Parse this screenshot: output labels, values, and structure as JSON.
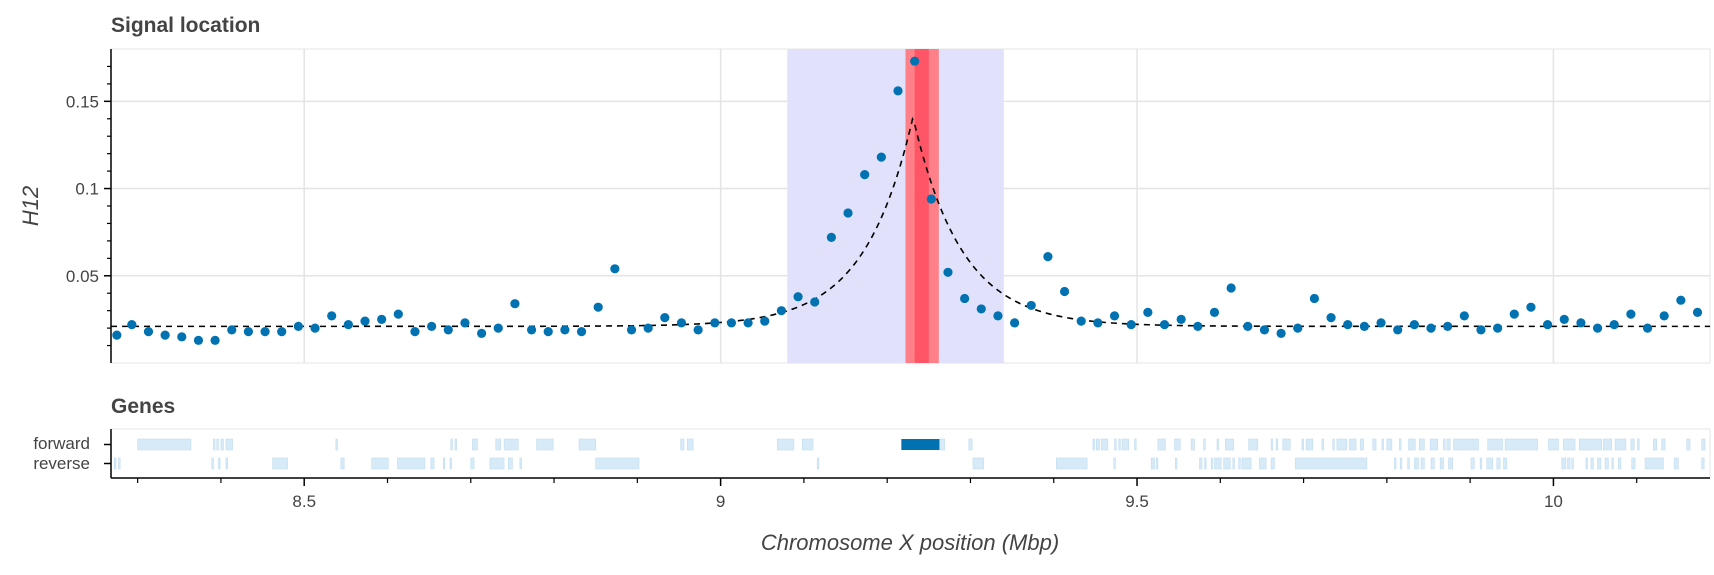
{
  "chart_data": {
    "type": "scatter",
    "signal_panel": {
      "title": "Signal location",
      "ylabel": "H12",
      "xlim": [
        8.268,
        10.188
      ],
      "ylim": [
        0.0,
        0.18
      ],
      "y_ticks": [
        {
          "value": 0.05,
          "label": "0.05"
        },
        {
          "value": 0.1,
          "label": "0.1"
        },
        {
          "value": 0.15,
          "label": "0.15"
        }
      ],
      "grid": true,
      "points_color": "#0072b2",
      "points": [
        [
          8.275,
          0.016
        ],
        [
          8.293,
          0.022
        ],
        [
          8.313,
          0.018
        ],
        [
          8.333,
          0.016
        ],
        [
          8.353,
          0.015
        ],
        [
          8.373,
          0.013
        ],
        [
          8.393,
          0.013
        ],
        [
          8.413,
          0.019
        ],
        [
          8.433,
          0.018
        ],
        [
          8.453,
          0.018
        ],
        [
          8.473,
          0.018
        ],
        [
          8.493,
          0.021
        ],
        [
          8.513,
          0.02
        ],
        [
          8.533,
          0.027
        ],
        [
          8.553,
          0.022
        ],
        [
          8.573,
          0.024
        ],
        [
          8.593,
          0.025
        ],
        [
          8.613,
          0.028
        ],
        [
          8.633,
          0.018
        ],
        [
          8.653,
          0.021
        ],
        [
          8.673,
          0.019
        ],
        [
          8.693,
          0.023
        ],
        [
          8.713,
          0.017
        ],
        [
          8.733,
          0.02
        ],
        [
          8.753,
          0.034
        ],
        [
          8.773,
          0.019
        ],
        [
          8.793,
          0.018
        ],
        [
          8.813,
          0.019
        ],
        [
          8.833,
          0.018
        ],
        [
          8.853,
          0.032
        ],
        [
          8.873,
          0.054
        ],
        [
          8.893,
          0.019
        ],
        [
          8.913,
          0.02
        ],
        [
          8.933,
          0.026
        ],
        [
          8.953,
          0.023
        ],
        [
          8.973,
          0.019
        ],
        [
          8.993,
          0.023
        ],
        [
          9.013,
          0.023
        ],
        [
          9.033,
          0.023
        ],
        [
          9.053,
          0.024
        ],
        [
          9.073,
          0.03
        ],
        [
          9.093,
          0.038
        ],
        [
          9.113,
          0.035
        ],
        [
          9.133,
          0.072
        ],
        [
          9.153,
          0.086
        ],
        [
          9.173,
          0.108
        ],
        [
          9.193,
          0.118
        ],
        [
          9.213,
          0.156
        ],
        [
          9.233,
          0.173
        ],
        [
          9.253,
          0.094
        ],
        [
          9.273,
          0.052
        ],
        [
          9.293,
          0.037
        ],
        [
          9.313,
          0.031
        ],
        [
          9.333,
          0.027
        ],
        [
          9.353,
          0.023
        ],
        [
          9.373,
          0.033
        ],
        [
          9.393,
          0.061
        ],
        [
          9.413,
          0.041
        ],
        [
          9.433,
          0.024
        ],
        [
          9.453,
          0.023
        ],
        [
          9.473,
          0.027
        ],
        [
          9.493,
          0.022
        ],
        [
          9.513,
          0.029
        ],
        [
          9.533,
          0.022
        ],
        [
          9.553,
          0.025
        ],
        [
          9.573,
          0.021
        ],
        [
          9.593,
          0.029
        ],
        [
          9.613,
          0.043
        ],
        [
          9.633,
          0.021
        ],
        [
          9.653,
          0.019
        ],
        [
          9.673,
          0.017
        ],
        [
          9.693,
          0.02
        ],
        [
          9.713,
          0.037
        ],
        [
          9.733,
          0.026
        ],
        [
          9.753,
          0.022
        ],
        [
          9.773,
          0.021
        ],
        [
          9.793,
          0.023
        ],
        [
          9.813,
          0.019
        ],
        [
          9.833,
          0.022
        ],
        [
          9.853,
          0.02
        ],
        [
          9.873,
          0.021
        ],
        [
          9.893,
          0.027
        ],
        [
          9.913,
          0.019
        ],
        [
          9.933,
          0.02
        ],
        [
          9.953,
          0.028
        ],
        [
          9.973,
          0.032
        ],
        [
          9.993,
          0.022
        ],
        [
          10.013,
          0.025
        ],
        [
          10.033,
          0.023
        ],
        [
          10.053,
          0.02
        ],
        [
          10.073,
          0.022
        ],
        [
          10.093,
          0.028
        ],
        [
          10.113,
          0.02
        ],
        [
          10.133,
          0.027
        ],
        [
          10.153,
          0.036
        ],
        [
          10.173,
          0.029
        ]
      ],
      "fit_peak_x": 9.231,
      "fit_peak_y": 0.141,
      "fit_baseline_y": 0.021,
      "fit_line_color": "#000000",
      "span_region": [
        9.08,
        9.34
      ],
      "span_color": "#e1e1fc",
      "focus_region": [
        9.222,
        9.262
      ],
      "focus_color": "#ff8088",
      "focus_center": [
        9.233,
        9.25
      ],
      "focus_center_color": "#ff5566"
    },
    "genes_panel": {
      "title": "Genes",
      "strands": [
        "forward",
        "reverse"
      ],
      "gene_color": "#d6eaf8",
      "highlight_color": "#0072b2",
      "forward_genes": [
        [
          8.3,
          8.364
        ],
        [
          8.391,
          8.393
        ],
        [
          8.395,
          8.397
        ],
        [
          8.4,
          8.403
        ],
        [
          8.406,
          8.414
        ],
        [
          8.538,
          8.54
        ],
        [
          8.676,
          8.678
        ],
        [
          8.681,
          8.683
        ],
        [
          8.702,
          8.708
        ],
        [
          8.73,
          8.736
        ],
        [
          8.74,
          8.757
        ],
        [
          8.779,
          8.799
        ],
        [
          8.83,
          8.85
        ],
        [
          8.952,
          8.956
        ],
        [
          8.96,
          8.967
        ],
        [
          9.068,
          9.088
        ],
        [
          9.098,
          9.111
        ],
        [
          9.217,
          9.267
        ],
        [
          9.263,
          9.269
        ],
        [
          9.298,
          9.302
        ],
        [
          9.447,
          9.449
        ],
        [
          9.451,
          9.455
        ],
        [
          9.457,
          9.465
        ],
        [
          9.473,
          9.475
        ],
        [
          9.478,
          9.48
        ],
        [
          9.482,
          9.49
        ],
        [
          9.497,
          9.499
        ],
        [
          9.525,
          9.534
        ],
        [
          9.545,
          9.552
        ],
        [
          9.565,
          9.569
        ],
        [
          9.58,
          9.582
        ],
        [
          9.596,
          9.598
        ],
        [
          9.606,
          9.616
        ],
        [
          9.634,
          9.645
        ],
        [
          9.661,
          9.663
        ],
        [
          9.667,
          9.669
        ],
        [
          9.675,
          9.684
        ],
        [
          9.698,
          9.7
        ],
        [
          9.703,
          9.711
        ],
        [
          9.722,
          9.724
        ],
        [
          9.735,
          9.737
        ],
        [
          9.74,
          9.752
        ],
        [
          9.755,
          9.763
        ],
        [
          9.768,
          9.772
        ],
        [
          9.783,
          9.787
        ],
        [
          9.794,
          9.796
        ],
        [
          9.8,
          9.806
        ],
        [
          9.815,
          9.817
        ],
        [
          9.826,
          9.834
        ],
        [
          9.839,
          9.845
        ],
        [
          9.852,
          9.861
        ],
        [
          9.868,
          9.87
        ],
        [
          9.872,
          9.876
        ],
        [
          9.88,
          9.91
        ],
        [
          9.921,
          9.939
        ],
        [
          9.942,
          9.981
        ],
        [
          9.994,
          10.006
        ],
        [
          10.012,
          10.026
        ],
        [
          10.031,
          10.058
        ],
        [
          10.06,
          10.07
        ],
        [
          10.074,
          10.087
        ],
        [
          10.093,
          10.097
        ],
        [
          10.101,
          10.103
        ],
        [
          10.12,
          10.124
        ],
        [
          10.13,
          10.134
        ],
        [
          10.16,
          10.164
        ],
        [
          10.178,
          10.182
        ]
      ],
      "reverse_genes": [
        [
          8.272,
          8.274
        ],
        [
          8.277,
          8.279
        ],
        [
          8.389,
          8.391
        ],
        [
          8.397,
          8.399
        ],
        [
          8.406,
          8.408
        ],
        [
          8.462,
          8.48
        ],
        [
          8.544,
          8.548
        ],
        [
          8.581,
          8.601
        ],
        [
          8.612,
          8.645
        ],
        [
          8.652,
          8.656
        ],
        [
          8.667,
          8.669
        ],
        [
          8.675,
          8.677
        ],
        [
          8.7,
          8.704
        ],
        [
          8.723,
          8.74
        ],
        [
          8.745,
          8.75
        ],
        [
          8.759,
          8.761
        ],
        [
          8.85,
          8.902
        ],
        [
          9.116,
          9.118
        ],
        [
          9.303,
          9.316
        ],
        [
          9.403,
          9.44
        ],
        [
          9.472,
          9.474
        ],
        [
          9.517,
          9.521
        ],
        [
          9.523,
          9.525
        ],
        [
          9.546,
          9.548
        ],
        [
          9.575,
          9.578
        ],
        [
          9.581,
          9.583
        ],
        [
          9.589,
          9.591
        ],
        [
          9.593,
          9.601
        ],
        [
          9.604,
          9.612
        ],
        [
          9.615,
          9.617
        ],
        [
          9.622,
          9.624
        ],
        [
          9.626,
          9.637
        ],
        [
          9.647,
          9.655
        ],
        [
          9.661,
          9.665
        ],
        [
          9.69,
          9.776
        ],
        [
          9.809,
          9.811
        ],
        [
          9.816,
          9.818
        ],
        [
          9.825,
          9.827
        ],
        [
          9.833,
          9.838
        ],
        [
          9.841,
          9.845
        ],
        [
          9.853,
          9.857
        ],
        [
          9.864,
          9.868
        ],
        [
          9.874,
          9.879
        ],
        [
          9.901,
          9.905
        ],
        [
          9.912,
          9.914
        ],
        [
          9.92,
          9.927
        ],
        [
          9.932,
          9.936
        ],
        [
          9.94,
          9.944
        ],
        [
          10.01,
          10.015
        ],
        [
          10.017,
          10.02
        ],
        [
          10.022,
          10.024
        ],
        [
          10.039,
          10.041
        ],
        [
          10.045,
          10.048
        ],
        [
          10.053,
          10.057
        ],
        [
          10.062,
          10.066
        ],
        [
          10.07,
          10.072
        ],
        [
          10.078,
          10.081
        ],
        [
          10.094,
          10.098
        ],
        [
          10.11,
          10.132
        ],
        [
          10.145,
          10.15
        ],
        [
          10.178,
          10.181
        ]
      ]
    },
    "x_axis": {
      "label": "Chromosome X position (Mbp)",
      "ticks": [
        {
          "value": 8.5,
          "label": "8.5"
        },
        {
          "value": 9.0,
          "label": "9"
        },
        {
          "value": 9.5,
          "label": "9.5"
        },
        {
          "value": 10.0,
          "label": "10"
        }
      ],
      "minor_tick_step": 0.1
    }
  }
}
